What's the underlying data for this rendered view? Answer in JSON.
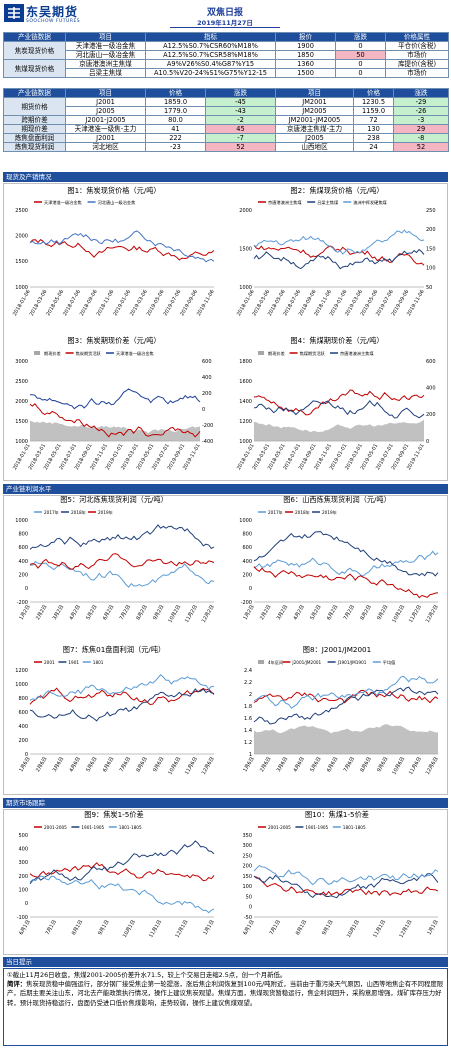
{
  "header": {
    "logo_cn": "东吴期货",
    "logo_en": "SOOCHOW FUTURES",
    "title": "双焦日报",
    "date": "2019年11月27日"
  },
  "spot": {
    "head": [
      "产业链数据",
      "项目",
      "指标",
      "报价",
      "涨跌",
      "价格属性"
    ],
    "groups": [
      {
        "name": "焦炭现货价格",
        "rows": [
          [
            "天津港准一级冶金焦",
            "A12.5%S0.7%CSR60%M18%",
            "1900",
            "0",
            "平仓价(含税)"
          ],
          [
            "河北唐山一级冶金焦",
            "A12.5%S0.7%CSR58%M18%",
            "1850",
            "50",
            "市场价"
          ]
        ]
      },
      {
        "name": "焦煤现货价格",
        "rows": [
          [
            "京唐港澳洲主焦煤",
            "A9%V26%S0.4%G87%Y15",
            "1360",
            "0",
            "库提价(含税)"
          ],
          [
            "吕梁主焦煤",
            "A10.5%V20-24%S1%G75%Y12-15",
            "1500",
            "0",
            "市场价"
          ]
        ]
      }
    ]
  },
  "futures": {
    "head": [
      "产业链数据",
      "项目",
      "价格",
      "涨跌",
      "项目",
      "价格",
      "涨跌"
    ],
    "group_name": "期货价格",
    "rows": [
      [
        "J2001",
        "1859.0",
        "-45",
        "JM2001",
        "1230.5",
        "-29"
      ],
      [
        "J2005",
        "1779.0",
        "-43",
        "JM2005",
        "1159.0",
        "-26"
      ]
    ],
    "spread": {
      "name": "跨期价差",
      "row": [
        "J2001-J2005",
        "80.0",
        "-2",
        "JM2001-JM2005",
        "72",
        "-3"
      ]
    },
    "basis": {
      "name": "期现价差",
      "row": [
        "天津港准一级焦-主力",
        "41",
        "45",
        "京唐港主焦煤-主力",
        "130",
        "29"
      ]
    },
    "margin": {
      "name": "炼焦盘面利润",
      "row": [
        "J2001",
        "222",
        "-7",
        "J2005",
        "238",
        "-8"
      ]
    },
    "profit": {
      "name": "炼焦现货利润",
      "row": [
        "河北地区",
        "-23",
        "52",
        "山西地区",
        "24",
        "52"
      ]
    }
  },
  "sections": {
    "s1": "现货及产销情况",
    "s2": "产业链利润水平",
    "s3": "期货市场跟踪",
    "s4": "当日提示"
  },
  "charts": {
    "c1": {
      "title": "图1：焦炭现货价格（元/吨）",
      "legend": [
        "天津港准一级冶金焦",
        "河北唐山一级冶金焦"
      ],
      "yticks": [
        "2500",
        "2000",
        "1500",
        "1000"
      ],
      "xticks": [
        "2018-01-06",
        "2018-03-06",
        "2018-05-06",
        "2018-07-06",
        "2018-09-06",
        "2018-11-06",
        "2019-01-06",
        "2019-03-06",
        "2019-05-06",
        "2019-07-06",
        "2019-09-06",
        "2019-11-06"
      ]
    },
    "c2": {
      "title": "图2：焦煤现货价格（元/吨）",
      "legend": [
        "京唐港澳洲主焦煤",
        "吕梁主焦煤",
        "澳洲中挥发硬焦煤"
      ],
      "yticks": [
        "2000",
        "1500",
        "1000"
      ],
      "y2ticks": [
        "250",
        "200",
        "150",
        "100",
        "50"
      ],
      "xticks": [
        "2018-01-06",
        "2018-03-06",
        "2018-05-06",
        "2018-07-06",
        "2018-09-06",
        "2018-11-06",
        "2019-01-06",
        "2019-03-06",
        "2019-05-06",
        "2019-07-06",
        "2019-09-06",
        "2019-11-06"
      ]
    },
    "c3": {
      "title": "图3：焦炭期现价差（元/吨）",
      "legend": [
        "期现价差",
        "焦炭期货活跃",
        "天津港准一级冶金焦"
      ],
      "yticks": [
        "3000",
        "2500",
        "2000",
        "1500",
        "1000"
      ],
      "y2ticks": [
        "600",
        "400",
        "200",
        "0",
        "-200",
        "-400"
      ],
      "xticks": [
        "2018-01-01",
        "2018-03-01",
        "2018-05-01",
        "2018-07-01",
        "2018-09-01",
        "2018-11-01",
        "2019-01-01",
        "2019-03-01",
        "2019-05-01",
        "2019-07-01",
        "2019-09-01",
        "2019-11-01"
      ]
    },
    "c4": {
      "title": "图4：焦煤期现价差（元/吨）",
      "legend": [
        "期现价差",
        "焦煤期货活跃",
        "京唐港澳洲主焦煤"
      ],
      "yticks": [
        "1800",
        "1600",
        "1400",
        "1200",
        "1000"
      ],
      "y2ticks": [
        "600",
        "400",
        "200",
        "0"
      ],
      "xticks": [
        "2018-01-01",
        "2018-03-01",
        "2018-05-01",
        "2018-07-01",
        "2018-09-01",
        "2018-11-01",
        "2019-01-01",
        "2019-03-01",
        "2019-05-01",
        "2019-07-01",
        "2019-09-01",
        "2019-11-01"
      ]
    },
    "c5": {
      "title": "图5：河北炼焦现货利润（元/吨）",
      "legend": [
        "2017年",
        "2018年",
        "2019年"
      ],
      "yticks": [
        "1000",
        "800",
        "600",
        "400",
        "200",
        "0",
        "-200"
      ],
      "xticks": [
        "1月2日",
        "2月2日",
        "3月2日",
        "4月2日",
        "5月2日",
        "6月2日",
        "7月2日",
        "8月2日",
        "9月2日",
        "10月2日",
        "11月2日",
        "12月2日"
      ]
    },
    "c6": {
      "title": "图6：山西炼焦现货利润（元/吨）",
      "legend": [
        "2017年",
        "2018年",
        "2019年"
      ],
      "yticks": [
        "1000",
        "800",
        "600",
        "400",
        "200",
        "0",
        "-200"
      ],
      "xticks": [
        "1月2日",
        "2月2日",
        "3月2日",
        "4月2日",
        "5月2日",
        "6月2日",
        "7月2日",
        "8月2日",
        "9月2日",
        "10月2日",
        "11月2日",
        "12月2日"
      ]
    },
    "c7": {
      "title": "图7：炼焦01盘面利润（元/吨）",
      "legend": [
        "2001",
        "1901",
        "1801"
      ],
      "yticks": [
        "1200",
        "1000",
        "800",
        "600",
        "400",
        "200",
        "0"
      ],
      "xticks": [
        "1月6日",
        "2月6日",
        "3月6日",
        "4月6日",
        "5月6日",
        "6月6日",
        "7月6日",
        "8月6日",
        "9月6日",
        "10月6日",
        "11月6日",
        "12月6日"
      ]
    },
    "c8": {
      "title": "图8：J2001/JM2001",
      "legend": [
        "4年区间",
        "J2001/JM2001",
        "J1901/JM1901",
        "平均值"
      ],
      "yticks": [
        "2.4",
        "2.2",
        "2",
        "1.8",
        "1.6",
        "1.4",
        "1.2",
        "1"
      ],
      "xticks": [
        "1月6日",
        "2月6日",
        "3月6日",
        "4月6日",
        "5月6日",
        "6月6日",
        "7月6日",
        "8月6日",
        "9月6日",
        "10月6日",
        "11月6日",
        "12月6日"
      ]
    },
    "c9": {
      "title": "图9：焦炭1-5价差",
      "legend": [
        "2001-2005",
        "1901-1905",
        "1801-1805"
      ],
      "yticks": [
        "500",
        "400",
        "300",
        "200",
        "100",
        "0",
        "-100"
      ],
      "xticks": [
        "6月1日",
        "7月1日",
        "8月1日",
        "9月1日",
        "10月1日",
        "11月1日",
        "12月1日",
        "1月1日"
      ]
    },
    "c10": {
      "title": "图10：焦煤1-5价差",
      "legend": [
        "2001-2005",
        "1901-1905",
        "1801-1805"
      ],
      "yticks": [
        "350",
        "300",
        "250",
        "200",
        "150",
        "100",
        "50",
        "0",
        "-50"
      ],
      "xticks": [
        "6月1日",
        "7月1日",
        "8月1日",
        "9月1日",
        "10月1日",
        "11月1日",
        "12月1日",
        "1月1日"
      ]
    }
  },
  "tips": {
    "line1": "①截止11月26日收盘，焦煤2001-2005价差升水71.5，较上个交易日走缩2.5点，创一个月新低。",
    "label": "简评：",
    "body": "焦炭现货稳中偏强运行，部分钢厂接受焦企第一轮提涨，涨后焦企利润恢复到100元/吨附近，当前由于重污染天气原因，山西等地焦企有不同程度限产，后期主要关注山东，河北去产能政策执行情况，操作上建议焦炭观望。焦煤方面，焦煤现货暂稳运行，焦企利润回升，采购意愿增强，煤矿库存压力好转，预计现货持稳运行，盘面仍受进口低价焦煤影响，走势较弱，操作上建议焦煤观望。"
  }
}
